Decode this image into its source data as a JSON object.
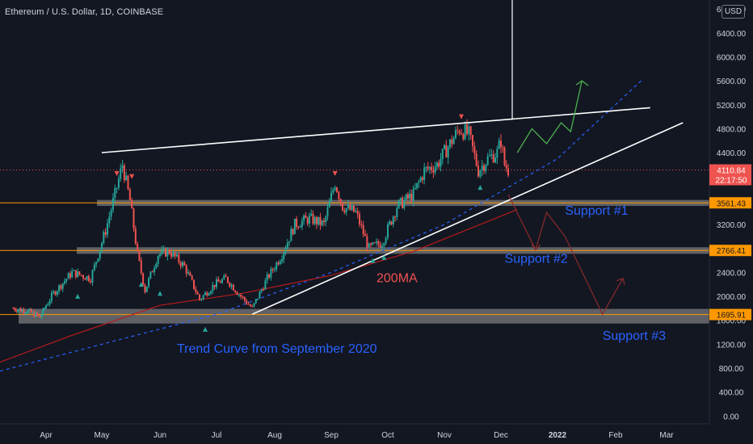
{
  "header": {
    "title": "Ethereum / U.S. Dollar, 1D, COINBASE",
    "currency": "USD"
  },
  "colors": {
    "background": "#131722",
    "up_candle": "#26a69a",
    "down_candle": "#ef5350",
    "grid_text": "#d1d4dc",
    "annotation_blue": "#2962ff",
    "ma_red": "#b71c1c",
    "projection_green": "#4caf50",
    "support_band": "#9e9e9e",
    "orange_line": "#ff9800"
  },
  "chart_data": {
    "type": "line",
    "instrument": "Ethereum / U.S. Dollar, 1D, COINBASE",
    "y_axis": {
      "ticks": [
        0,
        400,
        800,
        1200,
        1600,
        2000,
        2400,
        2800,
        3200,
        3600,
        4000,
        4400,
        4800,
        5200,
        5600,
        6000,
        6400,
        6800
      ],
      "tick_labels": [
        "0.00",
        "400.00",
        "800.00",
        "1200.00",
        "1600.00",
        "2000.00",
        "2400.00",
        "",
        "3200.00",
        "",
        "",
        "4400.00",
        "4800.00",
        "5200.00",
        "5600.00",
        "6000.00",
        "6400.00",
        "6800.00"
      ],
      "ylim": [
        -130,
        6950
      ]
    },
    "x_axis": {
      "ticks": [
        "Apr",
        "May",
        "Jun",
        "Jul",
        "Aug",
        "Sep",
        "Oct",
        "Nov",
        "Dec",
        "2022",
        "Feb",
        "Mar"
      ]
    },
    "price_series": {
      "name": "ETHUSD",
      "points": [
        [
          "2021-03-10",
          1800
        ],
        [
          "2021-03-20",
          1750
        ],
        [
          "2021-03-28",
          1650
        ],
        [
          "2021-04-05",
          2050
        ],
        [
          "2021-04-15",
          2400
        ],
        [
          "2021-04-25",
          2300
        ],
        [
          "2021-05-03",
          3100
        ],
        [
          "2021-05-08",
          3700
        ],
        [
          "2021-05-12",
          4200
        ],
        [
          "2021-05-16",
          3600
        ],
        [
          "2021-05-20",
          2700
        ],
        [
          "2021-05-24",
          2100
        ],
        [
          "2021-05-31",
          2700
        ],
        [
          "2021-06-06",
          2750
        ],
        [
          "2021-06-14",
          2500
        ],
        [
          "2021-06-22",
          1950
        ],
        [
          "2021-06-30",
          2200
        ],
        [
          "2021-07-06",
          2300
        ],
        [
          "2021-07-14",
          2000
        ],
        [
          "2021-07-20",
          1800
        ],
        [
          "2021-07-28",
          2300
        ],
        [
          "2021-08-05",
          2700
        ],
        [
          "2021-08-12",
          3200
        ],
        [
          "2021-08-20",
          3300
        ],
        [
          "2021-08-28",
          3200
        ],
        [
          "2021-09-03",
          3900
        ],
        [
          "2021-09-07",
          3500
        ],
        [
          "2021-09-14",
          3400
        ],
        [
          "2021-09-21",
          2800
        ],
        [
          "2021-09-28",
          2900
        ],
        [
          "2021-10-06",
          3500
        ],
        [
          "2021-10-15",
          3700
        ],
        [
          "2021-10-21",
          4100
        ],
        [
          "2021-10-28",
          4200
        ],
        [
          "2021-11-03",
          4500
        ],
        [
          "2021-11-09",
          4800
        ],
        [
          "2021-11-14",
          4700
        ],
        [
          "2021-11-19",
          4100
        ],
        [
          "2021-11-24",
          4300
        ],
        [
          "2021-11-29",
          4400
        ],
        [
          "2021-12-01",
          4600
        ],
        [
          "2021-12-03",
          4200
        ],
        [
          "2021-12-05",
          4111
        ]
      ]
    },
    "ma200": {
      "name": "200MA",
      "points": [
        [
          "2021-03-01",
          900
        ],
        [
          "2021-04-15",
          1350
        ],
        [
          "2021-06-01",
          1850
        ],
        [
          "2021-07-15",
          2050
        ],
        [
          "2021-09-01",
          2350
        ],
        [
          "2021-10-15",
          2750
        ],
        [
          "2021-12-10",
          3450
        ]
      ]
    },
    "trend_curve": {
      "name": "Trend Curve from September 2020",
      "points": [
        [
          "2021-03-01",
          750
        ],
        [
          "2021-05-01",
          1200
        ],
        [
          "2021-07-01",
          1700
        ],
        [
          "2021-09-01",
          2400
        ],
        [
          "2021-11-01",
          3200
        ],
        [
          "2022-01-01",
          4300
        ],
        [
          "2022-02-15",
          5600
        ]
      ]
    },
    "resistance_line": {
      "points": [
        [
          "2021-05-01",
          4400
        ],
        [
          "2022-02-20",
          5150
        ]
      ]
    },
    "ascending_support": {
      "points": [
        [
          "2021-07-20",
          1700
        ],
        [
          "2022-03-10",
          4900
        ]
      ]
    },
    "supports": [
      {
        "label": "Support #1",
        "level": 3561.43,
        "band": [
          3510,
          3610
        ]
      },
      {
        "label": "Support #2",
        "level": 2766.41,
        "band": [
          2710,
          2820
        ]
      },
      {
        "label": "Support #3",
        "level": 1695.91,
        "band": [
          1545,
          1790
        ]
      }
    ],
    "price_labels": [
      {
        "text": "4110.84",
        "sub": "22:17:50",
        "value": 4110.84,
        "color": "#ef5350"
      },
      {
        "text": "3561.43",
        "value": 3561.43,
        "color": "#ff9800"
      },
      {
        "text": "2766.41",
        "value": 2766.41,
        "color": "#ff9800"
      },
      {
        "text": "1695.91",
        "value": 1695.91,
        "color": "#ff9800"
      }
    ],
    "projections": {
      "bullish": [
        [
          "2021-12-10",
          4400
        ],
        [
          "2021-12-18",
          4800
        ],
        [
          "2021-12-26",
          4550
        ],
        [
          "2022-01-03",
          4900
        ],
        [
          "2022-01-08",
          4750
        ],
        [
          "2022-01-14",
          5600
        ]
      ],
      "bearish": [
        [
          "2021-12-05",
          3700
        ],
        [
          "2021-12-20",
          2780
        ],
        [
          "2021-12-26",
          3400
        ],
        [
          "2022-01-05",
          3000
        ],
        [
          "2022-01-25",
          1700
        ],
        [
          "2022-02-05",
          2300
        ]
      ]
    },
    "annotations": [
      {
        "text": "Support #1",
        "date": "2022-01-05",
        "value": 3360
      },
      {
        "text": "Support #2",
        "date": "2021-12-03",
        "value": 2560
      },
      {
        "text": "Support #3",
        "date": "2022-01-25",
        "value": 1275
      },
      {
        "text": "200MA",
        "date": "2021-09-25",
        "value": 2240
      },
      {
        "text": "Trend Curve from September 2020",
        "date": "2021-06-10",
        "value": 1060
      }
    ],
    "signal_markers": {
      "up": [
        [
          "2021-04-18",
          2000
        ],
        [
          "2021-05-22",
          2200
        ],
        [
          "2021-06-01",
          2050
        ],
        [
          "2021-06-25",
          1450
        ],
        [
          "2021-09-23",
          2600
        ],
        [
          "2021-09-29",
          2650
        ],
        [
          "2021-11-20",
          3820
        ]
      ],
      "down": [
        [
          "2021-05-09",
          4050
        ],
        [
          "2021-09-03",
          4050
        ],
        [
          "2021-11-10",
          5000
        ],
        [
          "2021-05-17",
          4000
        ]
      ]
    }
  }
}
